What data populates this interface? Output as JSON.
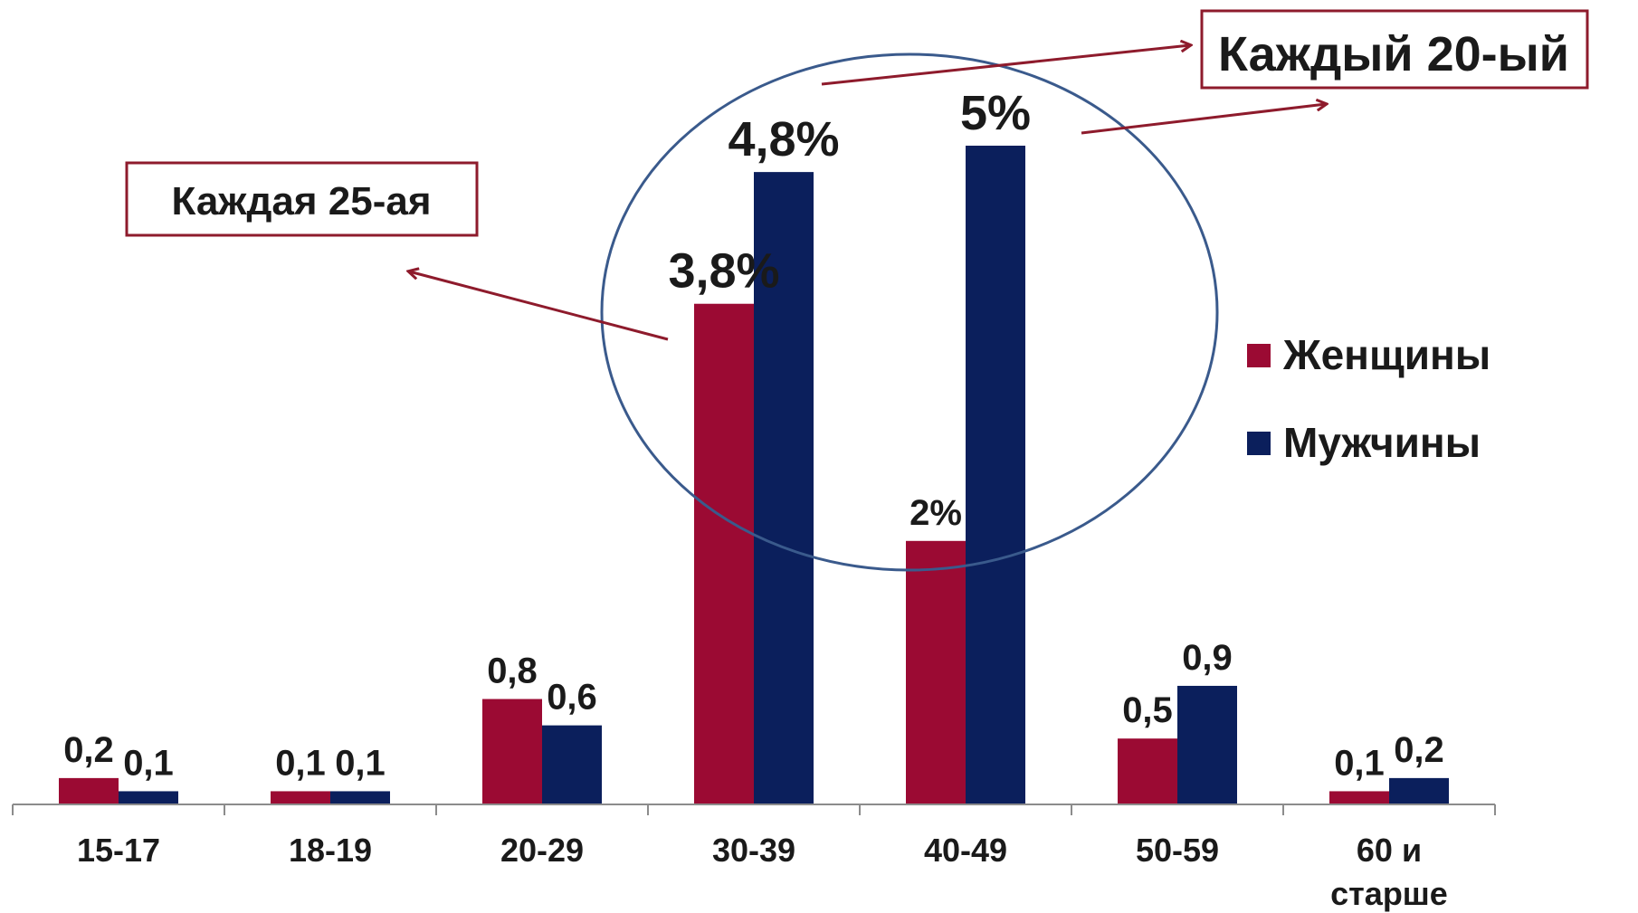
{
  "chart_data": {
    "type": "bar",
    "categories": [
      "15-17",
      "18-19",
      "20-29",
      "30-39",
      "40-49",
      "50-59",
      "60 и старше"
    ],
    "series": [
      {
        "name": "Женщины",
        "values": [
          0.2,
          0.1,
          0.8,
          3.8,
          2.0,
          0.5,
          0.1
        ],
        "labels": [
          "0,2",
          "0,1",
          "0,8",
          "3,8%",
          "2%",
          "0,5",
          "0,1"
        ],
        "color": "#9b0a33"
      },
      {
        "name": "Мужчины",
        "values": [
          0.1,
          0.1,
          0.6,
          4.8,
          5.0,
          0.9,
          0.2
        ],
        "labels": [
          "0,1",
          "0,1",
          "0,6",
          "4,8%",
          "5%",
          "0,9",
          "0,2"
        ],
        "color": "#0b1f5c"
      }
    ],
    "title": "",
    "xlabel": "",
    "ylabel": "",
    "ylim": [
      0,
      5
    ],
    "grid": false,
    "legend_position": "right",
    "annotations": {
      "women": "Каждая 25-ая",
      "men": "Каждый 20-ый"
    },
    "highlight_color": "#3a5a8c",
    "arrow_color": "#8e1b2c"
  }
}
